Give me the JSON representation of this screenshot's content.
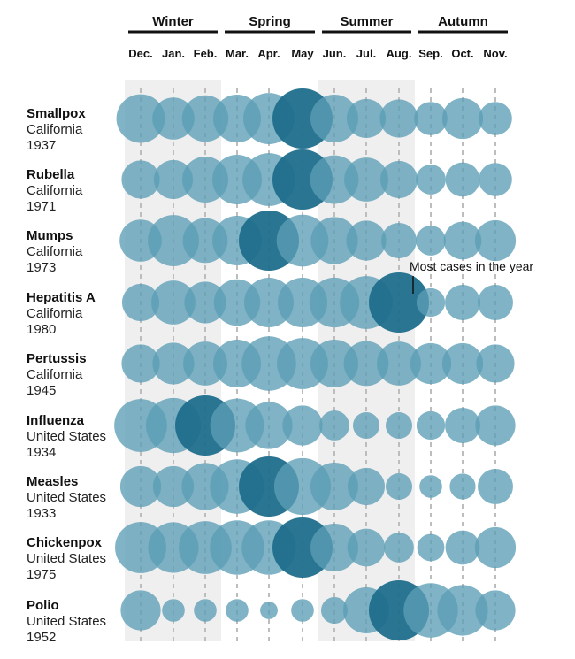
{
  "chart_data": {
    "type": "bubble-matrix",
    "seasons": [
      {
        "label": "Winter",
        "months": [
          "Dec.",
          "Jan.",
          "Feb."
        ],
        "shaded": true
      },
      {
        "label": "Spring",
        "months": [
          "Mar.",
          "Apr.",
          "May"
        ],
        "shaded": false
      },
      {
        "label": "Summer",
        "months": [
          "Jun.",
          "Jul.",
          "Aug."
        ],
        "shaded": true
      },
      {
        "label": "Autumn",
        "months": [
          "Sep.",
          "Oct.",
          "Nov."
        ],
        "shaded": false
      }
    ],
    "months": [
      "Dec.",
      "Jan.",
      "Feb.",
      "Mar.",
      "Apr.",
      "May",
      "Jun.",
      "Jul.",
      "Aug.",
      "Sep.",
      "Oct.",
      "Nov."
    ],
    "annotation": {
      "text": "Most cases in the year",
      "row": 3,
      "month": 8
    },
    "rows": [
      {
        "name": "Smallpox",
        "place": "California",
        "year": "1937",
        "values": [
          0.62,
          0.45,
          0.56,
          0.6,
          0.7,
          1.0,
          0.6,
          0.38,
          0.36,
          0.26,
          0.42,
          0.26
        ]
      },
      {
        "name": "Rubella",
        "place": "California",
        "year": "1971",
        "values": [
          0.36,
          0.38,
          0.55,
          0.65,
          0.75,
          1.0,
          0.62,
          0.5,
          0.34,
          0.2,
          0.28,
          0.26
        ]
      },
      {
        "name": "Mumps",
        "place": "California",
        "year": "1973",
        "values": [
          0.45,
          0.7,
          0.52,
          0.65,
          1.0,
          0.72,
          0.58,
          0.4,
          0.3,
          0.2,
          0.35,
          0.42
        ]
      },
      {
        "name": "Hepatitis A",
        "place": "California",
        "year": "1980",
        "values": [
          0.34,
          0.5,
          0.44,
          0.56,
          0.65,
          0.65,
          0.66,
          0.75,
          1.0,
          0.18,
          0.3,
          0.3
        ]
      },
      {
        "name": "Pertussis",
        "place": "California",
        "year": "1945",
        "values": [
          0.36,
          0.44,
          0.5,
          0.6,
          0.8,
          0.7,
          0.6,
          0.52,
          0.5,
          0.42,
          0.42,
          0.36
        ]
      },
      {
        "name": "Influenza",
        "place": "United States",
        "year": "1934",
        "values": [
          0.75,
          0.82,
          1.0,
          0.78,
          0.58,
          0.4,
          0.2,
          0.15,
          0.15,
          0.18,
          0.3,
          0.4
        ]
      },
      {
        "name": "Measles",
        "place": "United States",
        "year": "1933",
        "values": [
          0.42,
          0.42,
          0.58,
          0.8,
          1.0,
          0.88,
          0.6,
          0.34,
          0.15,
          0.1,
          0.14,
          0.3
        ]
      },
      {
        "name": "Chickenpox",
        "place": "United States",
        "year": "1975",
        "values": [
          0.7,
          0.68,
          0.75,
          0.8,
          0.8,
          1.0,
          0.6,
          0.35,
          0.2,
          0.16,
          0.28,
          0.42
        ]
      },
      {
        "name": "Polio",
        "place": "United States",
        "year": "1952",
        "values": [
          0.4,
          0.1,
          0.1,
          0.1,
          0.05,
          0.1,
          0.15,
          0.55,
          1.0,
          0.8,
          0.68,
          0.4
        ]
      }
    ],
    "colors": {
      "bubble": "#5b9db5",
      "peak": "#1f6e8c",
      "shade": "#efefef",
      "guide": "#bdbdbd"
    }
  }
}
